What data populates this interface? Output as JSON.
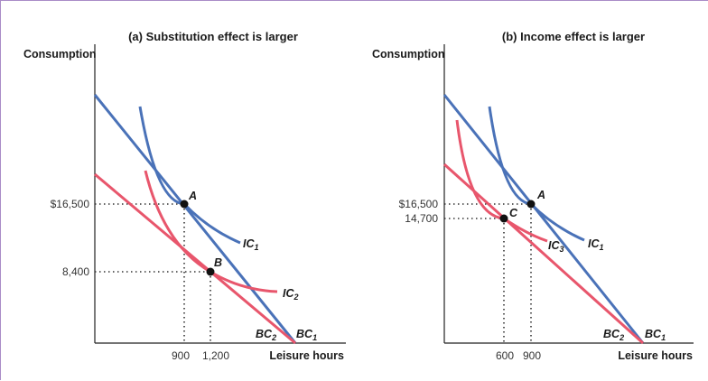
{
  "colors": {
    "blue": "#4a72b8",
    "red": "#e8566c",
    "axis": "#222222",
    "text": "#1a1a1a"
  },
  "chart_data": [
    {
      "type": "line",
      "title": "(a) Substitution effect is larger",
      "xlabel": "Leisure hours",
      "ylabel": "Consumption",
      "x_ticks": [
        "900",
        "1,200"
      ],
      "y_ticks": [
        "$16,500",
        "8,400"
      ],
      "points": [
        {
          "label": "A",
          "x": 900,
          "y": 16500
        },
        {
          "label": "B",
          "x": 1200,
          "y": 8400
        }
      ],
      "curve_labels": [
        {
          "name": "IC1",
          "base": "IC",
          "sub": "1"
        },
        {
          "name": "IC2",
          "base": "IC",
          "sub": "2"
        },
        {
          "name": "BC2",
          "base": "BC",
          "sub": "2"
        },
        {
          "name": "BC1",
          "base": "BC",
          "sub": "1"
        }
      ]
    },
    {
      "type": "line",
      "title": "(b) Income effect is larger",
      "xlabel": "Leisure hours",
      "ylabel": "Consumption",
      "x_ticks": [
        "600",
        "900"
      ],
      "y_ticks": [
        "$16,500",
        "14,700"
      ],
      "points": [
        {
          "label": "A",
          "x": 900,
          "y": 16500
        },
        {
          "label": "C",
          "x": 600,
          "y": 14700
        }
      ],
      "curve_labels": [
        {
          "name": "IC3",
          "base": "IC",
          "sub": "3"
        },
        {
          "name": "IC1",
          "base": "IC",
          "sub": "1"
        },
        {
          "name": "BC2",
          "base": "BC",
          "sub": "2"
        },
        {
          "name": "BC1",
          "base": "BC",
          "sub": "1"
        }
      ]
    }
  ]
}
